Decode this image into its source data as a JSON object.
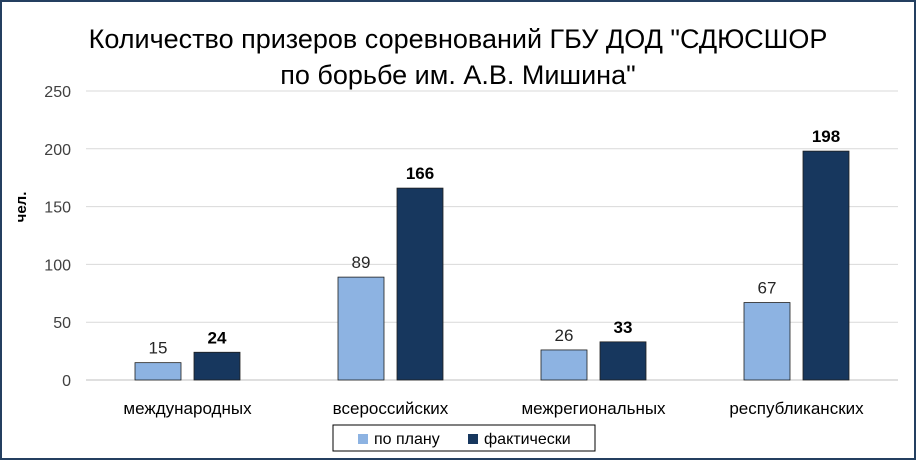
{
  "chart_data": {
    "type": "bar",
    "title_lines": [
      "Количество призеров соревнований ГБУ ДОД \"СДЮСШОР",
      "по борьбе им. А.В. Мишина\""
    ],
    "ylabel": "чел.",
    "xlabel": "",
    "ylim": [
      0,
      250
    ],
    "yticks": [
      "0",
      "50",
      "100",
      "150",
      "200",
      "250"
    ],
    "grid": true,
    "legend_position": "bottom",
    "categories": [
      "международных",
      "всероссийских",
      "межрегиональных",
      "республиканских"
    ],
    "series": [
      {
        "name": "по плану",
        "values": [
          15,
          89,
          26,
          67
        ],
        "color": "#8db3e2",
        "label_bold": false
      },
      {
        "name": "фактически",
        "values": [
          24,
          166,
          33,
          198
        ],
        "color": "#17375e",
        "label_bold": true
      }
    ]
  }
}
